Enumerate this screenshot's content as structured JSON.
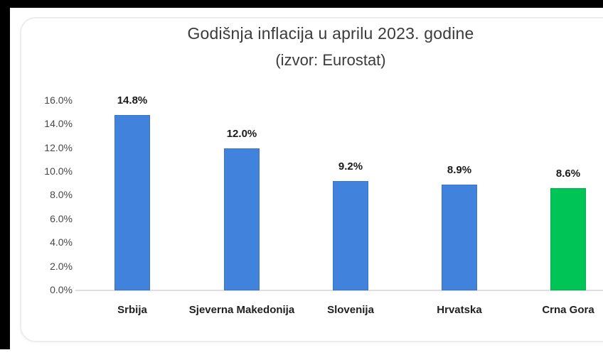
{
  "frame": {
    "top_bar_color": "#000000",
    "left_bar_color": "#000000",
    "card_background": "#ffffff",
    "card_border_color": "#ededed"
  },
  "chart_data": {
    "type": "bar",
    "title": "Godišnja inflacija u aprilu 2023. godine",
    "subtitle": "(izvor: Eurostat)",
    "categories": [
      "Srbija",
      "Sjeverna Makedonija",
      "Slovenija",
      "Hrvatska",
      "Crna Gora"
    ],
    "values": [
      14.8,
      12.0,
      9.2,
      8.9,
      8.6
    ],
    "value_labels": [
      "14.8%",
      "12.0%",
      "9.2%",
      "8.9%",
      "8.6%"
    ],
    "bar_colors": [
      "#4182DC",
      "#4182DC",
      "#4182DC",
      "#4182DC",
      "#00C456"
    ],
    "ylim": [
      0,
      16
    ],
    "ytick_values": [
      0,
      2,
      4,
      6,
      8,
      10,
      12,
      14,
      16
    ],
    "ytick_labels": [
      "0.0%",
      "2.0%",
      "4.0%",
      "6.0%",
      "8.0%",
      "10.0%",
      "12.0%",
      "14.0%",
      "16.0%"
    ],
    "xlabel": "",
    "ylabel": "",
    "grid": false,
    "legend": null,
    "accent_blue": "#4182DC",
    "accent_green": "#00C456"
  }
}
